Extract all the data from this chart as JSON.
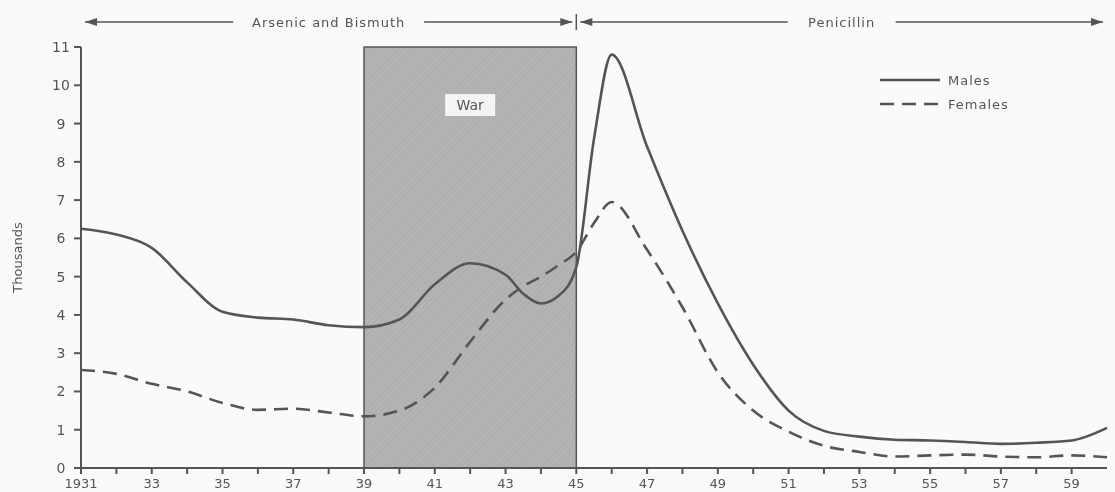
{
  "chart_data": {
    "type": "line",
    "ylabel": "Thousands",
    "x": [
      1931,
      1932,
      1933,
      1934,
      1935,
      1936,
      1937,
      1938,
      1939,
      1940,
      1941,
      1942,
      1943,
      1943.5,
      1944,
      1944.5,
      1945,
      1945.5,
      1946,
      1947,
      1948,
      1949,
      1950,
      1951,
      1952,
      1953,
      1954,
      1955,
      1956,
      1957,
      1958,
      1959,
      1960
    ],
    "series": [
      {
        "name": "Males",
        "color": "#555555",
        "line_style": "solid",
        "values": [
          6.25,
          6.1,
          5.75,
          4.85,
          4.08,
          3.93,
          3.88,
          3.73,
          3.68,
          3.88,
          4.8,
          5.35,
          5.05,
          4.55,
          4.3,
          4.5,
          5.25,
          8.6,
          10.8,
          8.4,
          6.2,
          4.3,
          2.7,
          1.5,
          0.97,
          0.82,
          0.74,
          0.72,
          0.68,
          0.63,
          0.66,
          0.72,
          1.05
        ]
      },
      {
        "name": "Females",
        "color": "#555555",
        "line_style": "dashed",
        "values": [
          2.56,
          2.46,
          2.2,
          2.0,
          1.7,
          1.52,
          1.55,
          1.45,
          1.35,
          1.5,
          2.1,
          3.3,
          4.4,
          4.75,
          5.0,
          5.3,
          5.65,
          6.4,
          6.95,
          5.7,
          4.2,
          2.5,
          1.5,
          0.95,
          0.58,
          0.42,
          0.3,
          0.33,
          0.35,
          0.3,
          0.28,
          0.33,
          0.28
        ]
      }
    ],
    "xlim": [
      1931,
      1960
    ],
    "xticks": [
      {
        "value": 1931,
        "label": "1931"
      },
      {
        "value": 1932,
        "label": null
      },
      {
        "value": 1933,
        "label": "33"
      },
      {
        "value": 1934,
        "label": null
      },
      {
        "value": 1935,
        "label": "35"
      },
      {
        "value": 1936,
        "label": null
      },
      {
        "value": 1937,
        "label": "37"
      },
      {
        "value": 1938,
        "label": null
      },
      {
        "value": 1939,
        "label": "39"
      },
      {
        "value": 1940,
        "label": null
      },
      {
        "value": 1941,
        "label": "41"
      },
      {
        "value": 1942,
        "label": null
      },
      {
        "value": 1943,
        "label": "43"
      },
      {
        "value": 1944,
        "label": null
      },
      {
        "value": 1945,
        "label": "45"
      },
      {
        "value": 1946,
        "label": null
      },
      {
        "value": 1947,
        "label": "47"
      },
      {
        "value": 1948,
        "label": null
      },
      {
        "value": 1949,
        "label": "49"
      },
      {
        "value": 1950,
        "label": null
      },
      {
        "value": 1951,
        "label": "51"
      },
      {
        "value": 1952,
        "label": null
      },
      {
        "value": 1953,
        "label": "53"
      },
      {
        "value": 1954,
        "label": null
      },
      {
        "value": 1955,
        "label": "55"
      },
      {
        "value": 1956,
        "label": null
      },
      {
        "value": 1957,
        "label": "57"
      },
      {
        "value": 1958,
        "label": null
      },
      {
        "value": 1959,
        "label": "59"
      }
    ],
    "ylim": [
      0,
      11
    ],
    "yticks": [
      0,
      1,
      2,
      3,
      4,
      5,
      6,
      7,
      8,
      9,
      10,
      11
    ],
    "bands": [
      {
        "axis": "x",
        "from": 1939,
        "to": 1945,
        "label": "War",
        "color": "#b4b4b4"
      }
    ],
    "annotations": [
      "Arsenic and Bismuth",
      "Penicillin"
    ],
    "legend": "top right",
    "grid": false
  }
}
